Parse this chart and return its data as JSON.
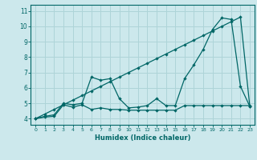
{
  "xlabel": "Humidex (Indice chaleur)",
  "background_color": "#cce8ec",
  "grid_color": "#aed4d8",
  "line_color": "#006666",
  "xlim": [
    -0.5,
    23.5
  ],
  "ylim": [
    3.6,
    11.4
  ],
  "yticks": [
    4,
    5,
    6,
    7,
    8,
    9,
    10,
    11
  ],
  "xticks": [
    0,
    1,
    2,
    3,
    4,
    5,
    6,
    7,
    8,
    9,
    10,
    11,
    12,
    13,
    14,
    15,
    16,
    17,
    18,
    19,
    20,
    21,
    22,
    23
  ],
  "series_diagonal_x": [
    0,
    1,
    2,
    3,
    4,
    5,
    6,
    7,
    8,
    9,
    10,
    11,
    12,
    13,
    14,
    15,
    16,
    17,
    18,
    19,
    20,
    21,
    22,
    23
  ],
  "series_diagonal_y": [
    4.0,
    4.3,
    4.6,
    4.9,
    5.2,
    5.5,
    5.8,
    6.1,
    6.4,
    6.7,
    7.0,
    7.3,
    7.6,
    7.9,
    8.2,
    8.5,
    8.8,
    9.1,
    9.4,
    9.7,
    10.0,
    10.3,
    10.6,
    4.8
  ],
  "series_wiggly_x": [
    0,
    1,
    2,
    3,
    4,
    5,
    6,
    7,
    8,
    9,
    10,
    11,
    12,
    13,
    14,
    15,
    16,
    17,
    18,
    19,
    20,
    21,
    22,
    23
  ],
  "series_wiggly_y": [
    4.0,
    4.15,
    4.25,
    5.0,
    4.9,
    5.0,
    6.7,
    6.5,
    6.6,
    5.3,
    4.7,
    4.75,
    4.85,
    5.3,
    4.85,
    4.85,
    6.6,
    7.5,
    8.5,
    9.8,
    10.55,
    10.45,
    6.1,
    4.8
  ],
  "series_flat_x": [
    0,
    1,
    2,
    3,
    4,
    5,
    6,
    7,
    8,
    9,
    10,
    11,
    12,
    13,
    14,
    15,
    16,
    17,
    18,
    19,
    20,
    21,
    22,
    23
  ],
  "series_flat_y": [
    4.0,
    4.1,
    4.15,
    4.9,
    4.75,
    4.9,
    4.6,
    4.7,
    4.6,
    4.6,
    4.55,
    4.55,
    4.55,
    4.55,
    4.55,
    4.55,
    4.85,
    4.85,
    4.85,
    4.85,
    4.85,
    4.85,
    4.85,
    4.85
  ]
}
